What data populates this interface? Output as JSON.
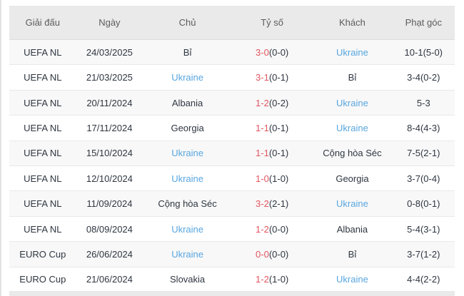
{
  "colors": {
    "team_link_blue": "#58a6df",
    "score_red": "#e2555f",
    "header_bg": "#eaeaea",
    "body_text": "#2e3640"
  },
  "header": {
    "cols": [
      "Giải đấu",
      "Ngày",
      "Chủ",
      "Tỷ số",
      "Khách",
      "Phạt góc"
    ]
  },
  "rows": [
    {
      "league": "UEFA NL",
      "date": "24/03/2025",
      "home": "Bỉ",
      "score_ft": "3-0",
      "score_ht": "(0-0)",
      "away": "Ukraine",
      "corners": "10-1(5-0)",
      "highlight": "away"
    },
    {
      "league": "UEFA NL",
      "date": "21/03/2025",
      "home": "Ukraine",
      "score_ft": "3-1",
      "score_ht": "(0-1)",
      "away": "Bỉ",
      "corners": "3-4(0-2)",
      "highlight": "home"
    },
    {
      "league": "UEFA NL",
      "date": "20/11/2024",
      "home": "Albania",
      "score_ft": "1-2",
      "score_ht": "(0-2)",
      "away": "Ukraine",
      "corners": "5-3",
      "highlight": "away"
    },
    {
      "league": "UEFA NL",
      "date": "17/11/2024",
      "home": "Georgia",
      "score_ft": "1-1",
      "score_ht": "(0-1)",
      "away": "Ukraine",
      "corners": "8-4(4-3)",
      "highlight": "away"
    },
    {
      "league": "UEFA NL",
      "date": "15/10/2024",
      "home": "Ukraine",
      "score_ft": "1-1",
      "score_ht": "(0-1)",
      "away": "Cộng hòa Séc",
      "corners": "7-5(2-1)",
      "highlight": "home"
    },
    {
      "league": "UEFA NL",
      "date": "12/10/2024",
      "home": "Ukraine",
      "score_ft": "1-0",
      "score_ht": "(1-0)",
      "away": "Georgia",
      "corners": "3-7(0-4)",
      "highlight": "home"
    },
    {
      "league": "UEFA NL",
      "date": "11/09/2024",
      "home": "Cộng hòa Séc",
      "score_ft": "3-2",
      "score_ht": "(2-1)",
      "away": "Ukraine",
      "corners": "0-8(0-1)",
      "highlight": "away"
    },
    {
      "league": "UEFA NL",
      "date": "08/09/2024",
      "home": "Ukraine",
      "score_ft": "1-2",
      "score_ht": "(0-0)",
      "away": "Albania",
      "corners": "5-4(3-1)",
      "highlight": "home"
    },
    {
      "league": "EURO Cup",
      "date": "26/06/2024",
      "home": "Ukraine",
      "score_ft": "0-0",
      "score_ht": "(0-0)",
      "away": "Bỉ",
      "corners": "3-7(1-2)",
      "highlight": "home"
    },
    {
      "league": "EURO Cup",
      "date": "21/06/2024",
      "home": "Slovakia",
      "score_ft": "1-2",
      "score_ht": "(1-0)",
      "away": "Ukraine",
      "corners": "4-4(2-2)",
      "highlight": "away"
    }
  ]
}
